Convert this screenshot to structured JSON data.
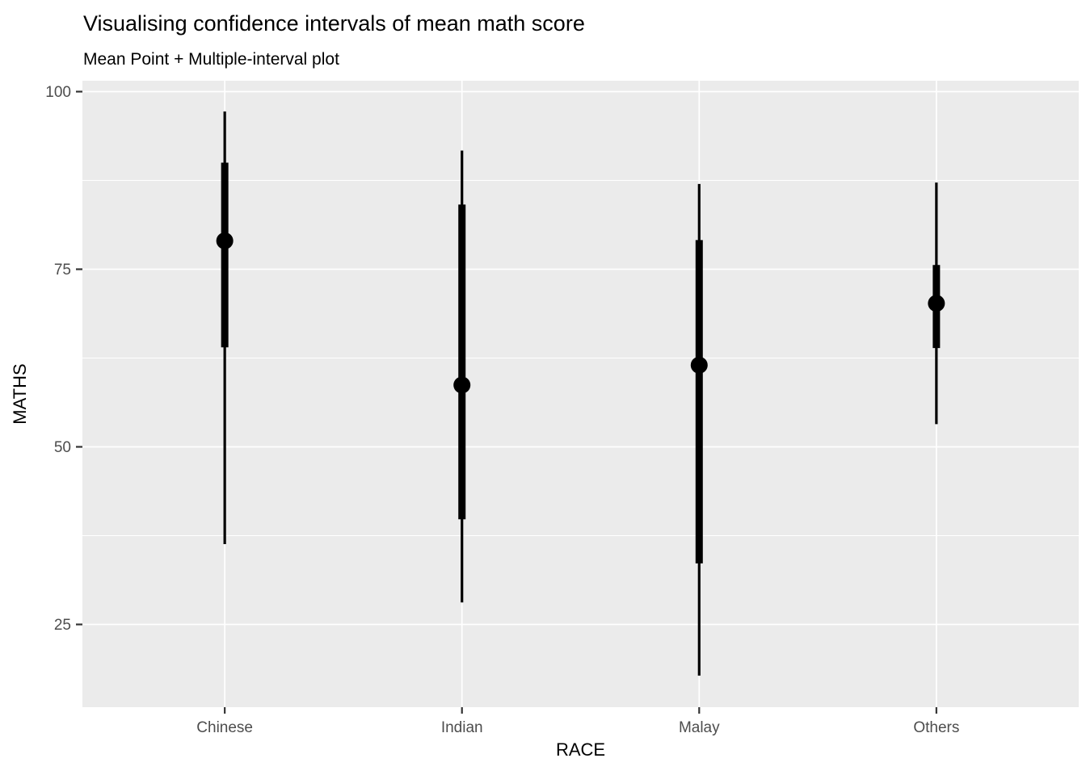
{
  "title": "Visualising confidence intervals of mean math score",
  "subtitle": "Mean Point + Multiple-interval plot",
  "chart_data": {
    "type": "pointinterval",
    "title": "Visualising confidence intervals of mean math score",
    "subtitle": "Mean Point + Multiple-interval plot",
    "xlabel": "RACE",
    "ylabel": "MATHS",
    "categories": [
      "Chinese",
      "Indian",
      "Malay",
      "Others"
    ],
    "series": [
      {
        "category": "Chinese",
        "mean": 79.0,
        "thick_interval": [
          64.0,
          90.0
        ],
        "thin_interval": [
          36.3,
          97.2
        ]
      },
      {
        "category": "Indian",
        "mean": 58.7,
        "thick_interval": [
          39.8,
          84.1
        ],
        "thin_interval": [
          28.1,
          91.7
        ]
      },
      {
        "category": "Malay",
        "mean": 61.5,
        "thick_interval": [
          33.6,
          79.1
        ],
        "thin_interval": [
          17.8,
          87.0
        ]
      },
      {
        "category": "Others",
        "mean": 70.2,
        "thick_interval": [
          63.9,
          75.6
        ],
        "thin_interval": [
          53.2,
          87.2
        ]
      }
    ],
    "y_ticks": [
      25,
      50,
      75,
      100
    ],
    "y_minor_ticks": [
      37.5,
      62.5,
      87.5
    ],
    "ylim": [
      13.4,
      101.5
    ],
    "grid": "on",
    "legend": "none"
  },
  "colors": {
    "page_bg": "#FFFFFF",
    "panel_bg": "#EBEBEB",
    "grid_major": "#FFFFFF",
    "grid_minor": "#FFFFFF",
    "mark": "#000000",
    "tick_mark": "#333333",
    "tick_label": "#4D4D4D",
    "axis_title": "#000000",
    "title_color": "#000000"
  }
}
